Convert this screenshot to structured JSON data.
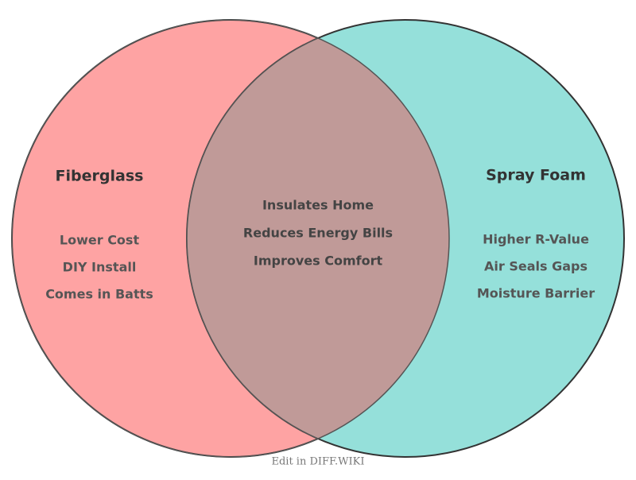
{
  "sets": [
    {
      "label": "Fiberglass",
      "items": [
        "Lower Cost",
        "DIY Install",
        "Comes in Batts"
      ]
    },
    {
      "label": "Spray Foam",
      "items": [
        "Higher R-Value",
        "Air Seals Gaps",
        "Moisture Barrier"
      ]
    }
  ],
  "intersection": {
    "items": [
      "Insulates Home",
      "Reduces Energy Bills",
      "Improves Comfort"
    ]
  },
  "footer": "Edit in DIFF.WIKI"
}
